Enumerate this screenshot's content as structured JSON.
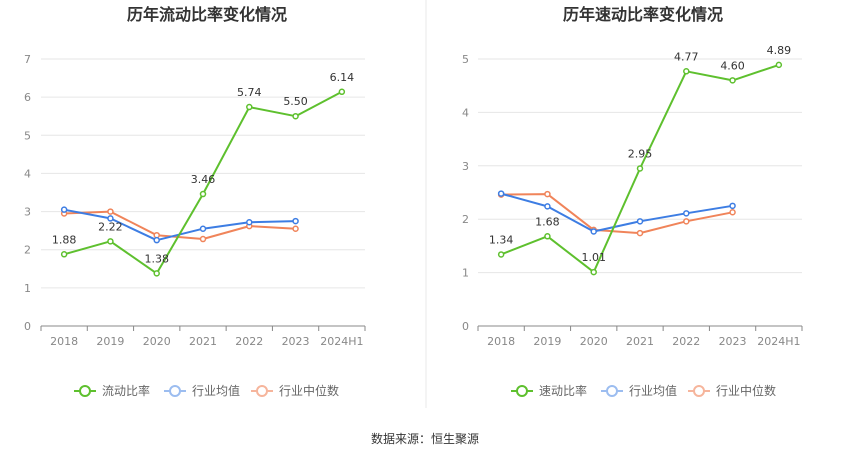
{
  "source": "数据来源：恒生聚源",
  "colors": {
    "company": "#5ec02e",
    "avg": "#3d7de3",
    "median": "#f0845a",
    "grid": "#e6e6e6",
    "axis": "#888888",
    "divider": "#e8e8e8"
  },
  "chart_data": [
    {
      "type": "line",
      "title": "历年流动比率变化情况",
      "categories": [
        "2018",
        "2019",
        "2020",
        "2021",
        "2022",
        "2023",
        "2024H1"
      ],
      "ylim": [
        0,
        7
      ],
      "yticks": [
        "0",
        "1",
        "2",
        "3",
        "4",
        "5",
        "6",
        "7"
      ],
      "series": [
        {
          "name": "流动比率",
          "color": "#5ec02e",
          "labeled": true,
          "values": [
            1.88,
            2.22,
            1.38,
            3.46,
            5.74,
            5.5,
            6.14
          ],
          "labels": [
            "1.88",
            "2.22",
            "1.38",
            "3.46",
            "5.74",
            "5.50",
            "6.14"
          ]
        },
        {
          "name": "行业均值",
          "color": "#3d7de3",
          "labeled": false,
          "values": [
            3.05,
            2.82,
            2.25,
            2.55,
            2.72,
            2.75,
            null
          ]
        },
        {
          "name": "行业中位数",
          "color": "#f0845a",
          "labeled": false,
          "values": [
            2.95,
            3.0,
            2.38,
            2.28,
            2.62,
            2.55,
            null
          ]
        }
      ]
    },
    {
      "type": "line",
      "title": "历年速动比率变化情况",
      "categories": [
        "2018",
        "2019",
        "2020",
        "2021",
        "2022",
        "2023",
        "2024H1"
      ],
      "ylim": [
        0,
        5
      ],
      "yticks": [
        "0",
        "1",
        "2",
        "3",
        "4",
        "5"
      ],
      "series": [
        {
          "name": "速动比率",
          "color": "#5ec02e",
          "labeled": true,
          "values": [
            1.34,
            1.68,
            1.01,
            2.95,
            4.77,
            4.6,
            4.89
          ],
          "labels": [
            "1.34",
            "1.68",
            "1.01",
            "2.95",
            "4.77",
            "4.60",
            "4.89"
          ]
        },
        {
          "name": "行业均值",
          "color": "#3d7de3",
          "labeled": false,
          "values": [
            2.48,
            2.24,
            1.77,
            1.96,
            2.11,
            2.25,
            null
          ]
        },
        {
          "name": "行业中位数",
          "color": "#f0845a",
          "labeled": false,
          "values": [
            2.46,
            2.47,
            1.8,
            1.74,
            1.96,
            2.13,
            null
          ]
        }
      ]
    }
  ]
}
